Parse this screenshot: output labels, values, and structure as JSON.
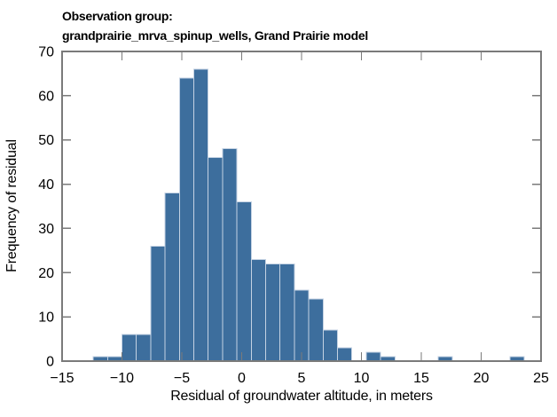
{
  "title": {
    "line1": "Observation group:",
    "line2": "grandprairie_mrva_spinup_wells, Grand Prairie model"
  },
  "chart_data": {
    "type": "bar",
    "subtype": "histogram",
    "title": "Observation group: grandprairie_mrva_spinup_wells, Grand Prairie model",
    "xlabel": "Residual of groundwater altitude, in meters",
    "ylabel": "Frequency of residual",
    "xlim": [
      -15,
      25
    ],
    "ylim": [
      0,
      70
    ],
    "xticks": [
      -15,
      -10,
      -5,
      0,
      5,
      10,
      15,
      20,
      25
    ],
    "yticks": [
      0,
      10,
      20,
      30,
      40,
      50,
      60,
      70
    ],
    "grid": false,
    "legend_position": "none",
    "bin_width": 1.2,
    "bin_edges": [
      -12.4,
      -11.2,
      -10.0,
      -8.8,
      -7.6,
      -6.4,
      -5.2,
      -4.0,
      -2.8,
      -1.6,
      -0.4,
      0.8,
      2.0,
      3.2,
      4.4,
      5.6,
      6.8,
      8.0,
      9.2,
      10.4,
      11.6,
      12.8,
      14.0,
      15.2,
      16.4,
      17.6,
      18.8,
      20.0,
      21.2,
      22.4,
      23.6
    ],
    "counts": [
      1,
      1,
      6,
      6,
      26,
      38,
      64,
      66,
      46,
      48,
      36,
      23,
      22,
      22,
      16,
      14,
      7,
      3,
      0,
      2,
      1,
      0,
      0,
      0,
      1,
      0,
      0,
      0,
      0,
      1
    ],
    "total_observations": 450,
    "bar_color": "#3D6E9D",
    "bar_edge_color": "#C4D2E3",
    "axis_color": "#7A7A7A",
    "text_color": "#000000"
  }
}
